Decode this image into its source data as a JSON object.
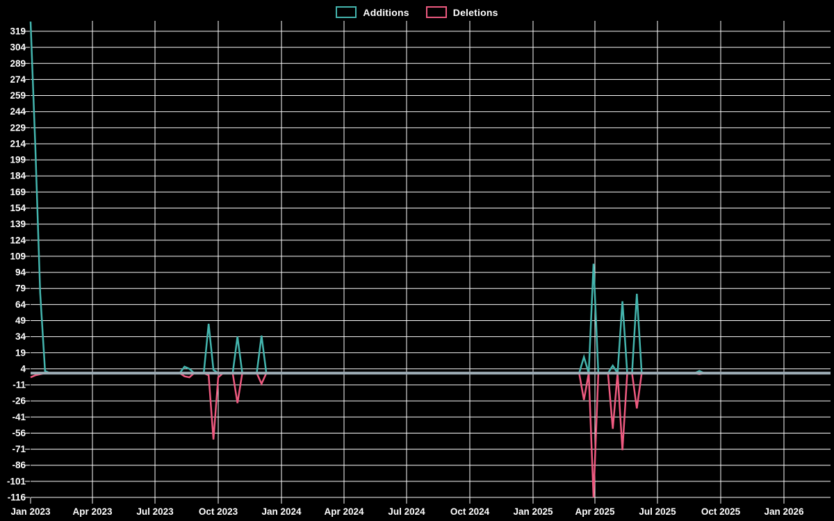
{
  "legend": {
    "additions_label": "Additions",
    "deletions_label": "Deletions"
  },
  "colors": {
    "background": "#000000",
    "grid": "#ffffff",
    "text": "#ffffff",
    "additions": "#44b5ae",
    "deletions": "#ee5a80",
    "zero_baseline": "#9dacb5"
  },
  "chart_data": {
    "type": "line",
    "title": "",
    "legend_position": "top",
    "grid": true,
    "y_axis": {
      "ticks": [
        319,
        304,
        289,
        274,
        259,
        244,
        229,
        214,
        199,
        184,
        169,
        154,
        139,
        124,
        109,
        94,
        79,
        64,
        49,
        34,
        19,
        4,
        -11,
        -26,
        -41,
        -56,
        -71,
        -86,
        -101,
        -116
      ],
      "min": -118,
      "max": 329
    },
    "x_axis": {
      "ticks": [
        {
          "label": "Jan 2023",
          "date": "2023-01-01"
        },
        {
          "label": "Apr 2023",
          "date": "2023-04-01"
        },
        {
          "label": "Jul 2023",
          "date": "2023-07-01"
        },
        {
          "label": "Oct 2023",
          "date": "2023-10-01"
        },
        {
          "label": "Jan 2024",
          "date": "2024-01-01"
        },
        {
          "label": "Apr 2024",
          "date": "2024-04-01"
        },
        {
          "label": "Jul 2024",
          "date": "2024-07-01"
        },
        {
          "label": "Oct 2024",
          "date": "2024-10-01"
        },
        {
          "label": "Jan 2025",
          "date": "2025-01-01"
        },
        {
          "label": "Apr 2025",
          "date": "2025-04-01"
        },
        {
          "label": "Jul 2025",
          "date": "2025-07-01"
        },
        {
          "label": "Oct 2025",
          "date": "2025-10-01"
        },
        {
          "label": "Jan 2026",
          "date": "2026-01-01"
        }
      ],
      "start": "2023-01-01",
      "end": "2026-03-08"
    },
    "zero_line": 0,
    "series": [
      {
        "name": "Additions",
        "color_key": "additions",
        "points": [
          [
            "2023-01-01",
            328
          ],
          [
            "2023-01-08",
            210
          ],
          [
            "2023-01-15",
            75
          ],
          [
            "2023-01-22",
            2
          ],
          [
            "2023-08-13",
            6
          ],
          [
            "2023-08-20",
            4
          ],
          [
            "2023-09-17",
            46
          ],
          [
            "2023-09-24",
            3
          ],
          [
            "2023-10-29",
            34
          ],
          [
            "2023-12-03",
            35
          ],
          [
            "2025-03-16",
            15
          ],
          [
            "2025-03-30",
            102
          ],
          [
            "2025-04-27",
            7
          ],
          [
            "2025-05-11",
            67
          ],
          [
            "2025-06-01",
            74
          ],
          [
            "2025-08-31",
            2
          ],
          [
            "2026-03-08",
            0
          ]
        ]
      },
      {
        "name": "Deletions",
        "color_key": "deletions",
        "points": [
          [
            "2023-01-01",
            -4
          ],
          [
            "2023-01-08",
            -2
          ],
          [
            "2023-01-15",
            -1
          ],
          [
            "2023-08-13",
            -3
          ],
          [
            "2023-08-20",
            -4
          ],
          [
            "2023-09-17",
            -2
          ],
          [
            "2023-09-24",
            -62
          ],
          [
            "2023-10-01",
            -4
          ],
          [
            "2023-10-29",
            -28
          ],
          [
            "2023-12-03",
            -10
          ],
          [
            "2025-03-16",
            -25
          ],
          [
            "2025-03-30",
            -116
          ],
          [
            "2025-04-27",
            -52
          ],
          [
            "2025-05-11",
            -72
          ],
          [
            "2025-06-01",
            -33
          ],
          [
            "2025-08-31",
            -1
          ],
          [
            "2026-03-08",
            0
          ]
        ]
      }
    ]
  }
}
